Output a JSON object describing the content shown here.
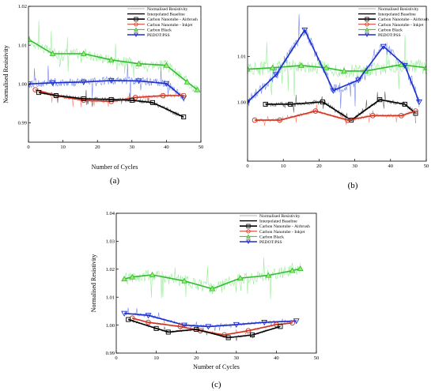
{
  "legend_entries": [
    "Normalised Resistivity",
    "Interpolated Baseline",
    "Carbon Nanotube - Airbrush",
    "Carbon Nanotube - Inkjet",
    "Carbon Black",
    "PEDOT:PSS"
  ],
  "chart_data": [
    {
      "type": "line",
      "panel_label": "(a)",
      "xlabel": "Number of Cycles",
      "ylabel": "Normalised Resistivity",
      "xlim": [
        0,
        50
      ],
      "ylim": [
        0.985,
        1.02
      ],
      "xticks": [
        0,
        10,
        20,
        30,
        40,
        50
      ],
      "yticks": [
        0.99,
        1.0,
        1.01,
        1.02
      ],
      "ytick_labels": [
        "0.99",
        "1.00",
        "1.01",
        "1.02"
      ],
      "grid": false,
      "legend_position": "top-right",
      "series": [
        {
          "name": "Carbon Black",
          "color": "#33bb33",
          "marker": "triangle",
          "light": "#99ee99",
          "x": [
            0,
            7,
            16,
            24,
            32,
            40,
            46,
            49
          ],
          "y": [
            1.0115,
            1.0078,
            1.0078,
            1.0062,
            1.0052,
            1.0048,
            1.0005,
            0.9985
          ],
          "noise": 0.008
        },
        {
          "name": "PEDOT:PSS",
          "color": "#1a2fcc",
          "marker": "triangle-down",
          "light": "#7788ee",
          "x": [
            0,
            7,
            16,
            24,
            32,
            40,
            45
          ],
          "y": [
            1.0,
            1.0003,
            1.0005,
            1.0009,
            1.0008,
            1.0001,
            0.9964
          ],
          "noise": 0.006
        },
        {
          "name": "Carbon Nanotube - Inkjet",
          "color": "#cc3322",
          "marker": "circle",
          "light": "#ff8877",
          "x": [
            2,
            8,
            16,
            24,
            31,
            39,
            45
          ],
          "y": [
            0.9985,
            0.997,
            0.9958,
            0.9955,
            0.9965,
            0.997,
            0.997
          ],
          "noise": 0.003
        },
        {
          "name": "Carbon Nanotube - Airbrush",
          "color": "#000000",
          "marker": "square",
          "light": "#666666",
          "x": [
            3,
            8,
            16,
            24,
            30,
            36,
            45
          ],
          "y": [
            0.9978,
            0.997,
            0.9962,
            0.996,
            0.9958,
            0.9952,
            0.9915
          ],
          "noise": 0.003
        }
      ]
    },
    {
      "type": "line",
      "panel_label": "(b)",
      "xlabel": "Number of Cycles",
      "ylabel": "",
      "xlim": [
        0,
        50
      ],
      "ylim": [
        0.987,
        1.021
      ],
      "xticks": [
        0,
        10,
        20,
        30,
        40,
        50
      ],
      "yticks": [
        1.0,
        1.01
      ],
      "ytick_labels": [
        "1.00",
        "1.01"
      ],
      "grid": false,
      "legend_position": "top-right",
      "series": [
        {
          "name": "Carbon Black",
          "color": "#33bb33",
          "marker": "triangle",
          "light": "#99ee99",
          "x": [
            0,
            7,
            15,
            22,
            27,
            33,
            43,
            50
          ],
          "y": [
            1.0072,
            1.0075,
            1.008,
            1.0075,
            1.0068,
            1.0068,
            1.0082,
            1.0075
          ],
          "noise": 0.009
        },
        {
          "name": "PEDOT:PSS",
          "color": "#1a2fcc",
          "marker": "triangle-down",
          "light": "#7788ee",
          "x": [
            0,
            8,
            16,
            24,
            31,
            38,
            44,
            48
          ],
          "y": [
            1.0,
            1.006,
            1.0158,
            1.0025,
            1.0048,
            1.0122,
            1.008,
            1.0
          ],
          "noise": 0.007
        },
        {
          "name": "Carbon Nanotube - Airbrush",
          "color": "#000000",
          "marker": "square",
          "light": "#666666",
          "x": [
            5,
            12,
            21,
            29,
            37,
            44,
            47
          ],
          "y": [
            0.9995,
            0.9995,
            1.0,
            0.996,
            1.0005,
            0.9995,
            0.9975
          ],
          "noise": 0.003
        },
        {
          "name": "Carbon Nanotube - Inkjet",
          "color": "#cc3322",
          "marker": "circle",
          "light": "#ff8877",
          "x": [
            2,
            9,
            19,
            28,
            35,
            43,
            47
          ],
          "y": [
            0.996,
            0.996,
            0.998,
            0.996,
            0.997,
            0.997,
            0.998
          ],
          "noise": 0.002
        }
      ]
    },
    {
      "type": "line",
      "panel_label": "(c)",
      "xlabel": "Number of Cycles",
      "ylabel": "Normalised Resistivity",
      "xlim": [
        0,
        50
      ],
      "ylim": [
        0.99,
        1.04
      ],
      "xticks": [
        0,
        10,
        20,
        30,
        40,
        50
      ],
      "yticks": [
        0.99,
        1.0,
        1.01,
        1.02,
        1.03,
        1.04
      ],
      "ytick_labels": [
        "0.99",
        "1.00",
        "1.01",
        "1.02",
        "1.03",
        "1.04"
      ],
      "grid": false,
      "legend_position": "top-right",
      "series": [
        {
          "name": "Carbon Black",
          "color": "#33bb33",
          "marker": "triangle",
          "light": "#99ee99",
          "x": [
            2,
            4,
            9,
            17,
            24,
            31,
            38,
            44,
            46
          ],
          "y": [
            1.0165,
            1.0172,
            1.018,
            1.0158,
            1.013,
            1.0168,
            1.0178,
            1.0195,
            1.0202
          ],
          "noise": 0.012
        },
        {
          "name": "PEDOT:PSS",
          "color": "#1a2fcc",
          "marker": "triangle-down",
          "light": "#7788ee",
          "x": [
            2,
            8,
            17,
            23,
            30,
            37,
            45
          ],
          "y": [
            1.0042,
            1.0035,
            1.0,
            0.9995,
            1.0002,
            1.001,
            1.0015
          ],
          "noise": 0.003
        },
        {
          "name": "Carbon Nanotube - Inkjet",
          "color": "#cc3322",
          "marker": "circle",
          "light": "#ff8877",
          "x": [
            4,
            8,
            16,
            21,
            27,
            33,
            40,
            44
          ],
          "y": [
            1.0025,
            1.001,
            0.9995,
            0.998,
            0.9965,
            0.998,
            1.0002,
            1.0008
          ],
          "noise": 0.002
        },
        {
          "name": "Carbon Nanotube - Airbrush",
          "color": "#000000",
          "marker": "square",
          "light": "#666666",
          "x": [
            3,
            10,
            13,
            20,
            28,
            34,
            41
          ],
          "y": [
            1.002,
            0.9988,
            0.9975,
            0.9985,
            0.9955,
            0.9965,
            0.9995
          ],
          "noise": 0.002
        }
      ]
    }
  ]
}
